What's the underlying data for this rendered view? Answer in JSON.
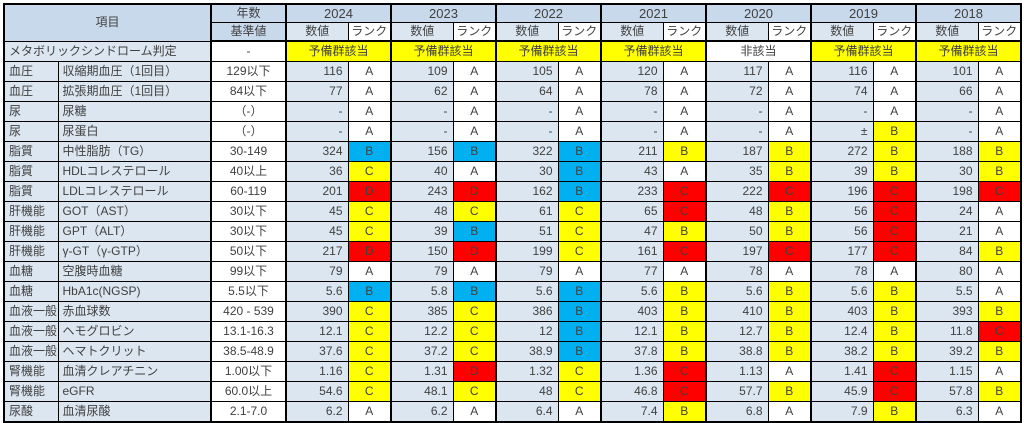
{
  "colors": {
    "rank_yellow": "#ffff00",
    "rank_blue": "#00b0f0",
    "rank_red": "#ff0000",
    "header_blue": "#c9d9ec",
    "cell_blue": "#dce6f1"
  },
  "header": {
    "item_label": "項目",
    "years_label": "年数",
    "standard_label": "基準値",
    "value_label": "数値",
    "rank_label": "ランク",
    "years": [
      "2024",
      "2023",
      "2022",
      "2021",
      "2020",
      "2019",
      "2018"
    ]
  },
  "metabolic": {
    "label": "メタボリックシンドローム判定",
    "standard": "-",
    "results": [
      {
        "text": "予備群該当",
        "bg": "yellow"
      },
      {
        "text": "予備群該当",
        "bg": "yellow"
      },
      {
        "text": "予備群該当",
        "bg": "yellow"
      },
      {
        "text": "予備群該当",
        "bg": "yellow"
      },
      {
        "text": "非該当",
        "bg": "white"
      },
      {
        "text": "予備群該当",
        "bg": "yellow"
      },
      {
        "text": "予備群該当",
        "bg": "yellow"
      }
    ]
  },
  "rows": [
    {
      "category": "血圧",
      "item": "収縮期血圧（1回目）",
      "standard": "129以下",
      "cells": [
        {
          "v": "116",
          "r": "A",
          "bg": "white"
        },
        {
          "v": "109",
          "r": "A",
          "bg": "white"
        },
        {
          "v": "105",
          "r": "A",
          "bg": "white"
        },
        {
          "v": "120",
          "r": "A",
          "bg": "white"
        },
        {
          "v": "117",
          "r": "A",
          "bg": "white"
        },
        {
          "v": "116",
          "r": "A",
          "bg": "white"
        },
        {
          "v": "101",
          "r": "A",
          "bg": "white"
        }
      ]
    },
    {
      "category": "血圧",
      "item": "拡張期血圧（1回目）",
      "standard": "84以下",
      "cells": [
        {
          "v": "77",
          "r": "A",
          "bg": "white"
        },
        {
          "v": "62",
          "r": "A",
          "bg": "white"
        },
        {
          "v": "64",
          "r": "A",
          "bg": "white"
        },
        {
          "v": "78",
          "r": "A",
          "bg": "white"
        },
        {
          "v": "72",
          "r": "A",
          "bg": "white"
        },
        {
          "v": "74",
          "r": "A",
          "bg": "white"
        },
        {
          "v": "66",
          "r": "A",
          "bg": "white"
        }
      ]
    },
    {
      "category": "尿",
      "item": "尿糖",
      "standard": "（-）",
      "cells": [
        {
          "v": "-",
          "r": "A",
          "bg": "white"
        },
        {
          "v": "-",
          "r": "A",
          "bg": "white"
        },
        {
          "v": "-",
          "r": "A",
          "bg": "white"
        },
        {
          "v": "-",
          "r": "A",
          "bg": "white"
        },
        {
          "v": "-",
          "r": "A",
          "bg": "white"
        },
        {
          "v": "-",
          "r": "A",
          "bg": "white"
        },
        {
          "v": "-",
          "r": "A",
          "bg": "white"
        }
      ]
    },
    {
      "category": "尿",
      "item": "尿蛋白",
      "standard": "（-）",
      "cells": [
        {
          "v": "-",
          "r": "A",
          "bg": "white"
        },
        {
          "v": "-",
          "r": "A",
          "bg": "white"
        },
        {
          "v": "-",
          "r": "A",
          "bg": "white"
        },
        {
          "v": "-",
          "r": "A",
          "bg": "white"
        },
        {
          "v": "-",
          "r": "A",
          "bg": "white"
        },
        {
          "v": "±",
          "r": "B",
          "bg": "yellow"
        },
        {
          "v": "-",
          "r": "A",
          "bg": "white"
        }
      ]
    },
    {
      "category": "脂質",
      "item": "中性脂肪（TG）",
      "standard": "30-149",
      "cells": [
        {
          "v": "324",
          "r": "B",
          "bg": "blue"
        },
        {
          "v": "156",
          "r": "B",
          "bg": "blue"
        },
        {
          "v": "322",
          "r": "B",
          "bg": "blue"
        },
        {
          "v": "211",
          "r": "B",
          "bg": "yellow"
        },
        {
          "v": "187",
          "r": "B",
          "bg": "yellow"
        },
        {
          "v": "272",
          "r": "B",
          "bg": "yellow"
        },
        {
          "v": "188",
          "r": "B",
          "bg": "yellow"
        }
      ]
    },
    {
      "category": "脂質",
      "item": "HDLコレステロール",
      "standard": "40以上",
      "cells": [
        {
          "v": "36",
          "r": "C",
          "bg": "yellow"
        },
        {
          "v": "40",
          "r": "A",
          "bg": "white"
        },
        {
          "v": "30",
          "r": "B",
          "bg": "blue"
        },
        {
          "v": "43",
          "r": "A",
          "bg": "white"
        },
        {
          "v": "35",
          "r": "B",
          "bg": "yellow"
        },
        {
          "v": "39",
          "r": "B",
          "bg": "yellow"
        },
        {
          "v": "30",
          "r": "B",
          "bg": "yellow"
        }
      ]
    },
    {
      "category": "脂質",
      "item": "LDLコレステロール",
      "standard": "60-119",
      "cells": [
        {
          "v": "201",
          "r": "D",
          "bg": "red"
        },
        {
          "v": "243",
          "r": "D",
          "bg": "red"
        },
        {
          "v": "162",
          "r": "B",
          "bg": "blue"
        },
        {
          "v": "233",
          "r": "C",
          "bg": "red"
        },
        {
          "v": "222",
          "r": "C",
          "bg": "red"
        },
        {
          "v": "196",
          "r": "C",
          "bg": "red"
        },
        {
          "v": "198",
          "r": "C",
          "bg": "red"
        }
      ]
    },
    {
      "category": "肝機能",
      "item": "GOT（AST）",
      "standard": "30以下",
      "cells": [
        {
          "v": "45",
          "r": "C",
          "bg": "yellow"
        },
        {
          "v": "48",
          "r": "C",
          "bg": "yellow"
        },
        {
          "v": "61",
          "r": "C",
          "bg": "yellow"
        },
        {
          "v": "65",
          "r": "C",
          "bg": "red"
        },
        {
          "v": "48",
          "r": "B",
          "bg": "yellow"
        },
        {
          "v": "56",
          "r": "C",
          "bg": "red"
        },
        {
          "v": "24",
          "r": "A",
          "bg": "white"
        }
      ]
    },
    {
      "category": "肝機能",
      "item": "GPT（ALT）",
      "standard": "30以下",
      "cells": [
        {
          "v": "45",
          "r": "C",
          "bg": "yellow"
        },
        {
          "v": "39",
          "r": "B",
          "bg": "blue"
        },
        {
          "v": "51",
          "r": "C",
          "bg": "yellow"
        },
        {
          "v": "47",
          "r": "B",
          "bg": "yellow"
        },
        {
          "v": "50",
          "r": "B",
          "bg": "yellow"
        },
        {
          "v": "56",
          "r": "C",
          "bg": "red"
        },
        {
          "v": "21",
          "r": "A",
          "bg": "white"
        }
      ]
    },
    {
      "category": "肝機能",
      "item": "γ-GT（γ-GTP）",
      "standard": "50以下",
      "cells": [
        {
          "v": "217",
          "r": "D",
          "bg": "red"
        },
        {
          "v": "150",
          "r": "D",
          "bg": "red"
        },
        {
          "v": "199",
          "r": "C",
          "bg": "yellow"
        },
        {
          "v": "161",
          "r": "C",
          "bg": "red"
        },
        {
          "v": "197",
          "r": "C",
          "bg": "red"
        },
        {
          "v": "177",
          "r": "C",
          "bg": "red"
        },
        {
          "v": "84",
          "r": "B",
          "bg": "yellow"
        }
      ]
    },
    {
      "category": "血糖",
      "item": "空腹時血糖",
      "standard": "99以下",
      "cells": [
        {
          "v": "79",
          "r": "A",
          "bg": "white"
        },
        {
          "v": "79",
          "r": "A",
          "bg": "white"
        },
        {
          "v": "79",
          "r": "A",
          "bg": "white"
        },
        {
          "v": "77",
          "r": "A",
          "bg": "white"
        },
        {
          "v": "78",
          "r": "A",
          "bg": "white"
        },
        {
          "v": "78",
          "r": "A",
          "bg": "white"
        },
        {
          "v": "80",
          "r": "A",
          "bg": "white"
        }
      ]
    },
    {
      "category": "血糖",
      "item": "HbA1c(NGSP)",
      "standard": "5.5以下",
      "cells": [
        {
          "v": "5.6",
          "r": "B",
          "bg": "blue"
        },
        {
          "v": "5.8",
          "r": "B",
          "bg": "blue"
        },
        {
          "v": "5.6",
          "r": "B",
          "bg": "blue"
        },
        {
          "v": "5.6",
          "r": "B",
          "bg": "yellow"
        },
        {
          "v": "5.6",
          "r": "B",
          "bg": "yellow"
        },
        {
          "v": "5.6",
          "r": "B",
          "bg": "yellow"
        },
        {
          "v": "5.5",
          "r": "A",
          "bg": "white"
        }
      ]
    },
    {
      "category": "血液一般",
      "item": "赤血球数",
      "standard": "420 - 539",
      "cells": [
        {
          "v": "390",
          "r": "C",
          "bg": "yellow"
        },
        {
          "v": "385",
          "r": "C",
          "bg": "yellow"
        },
        {
          "v": "386",
          "r": "B",
          "bg": "blue"
        },
        {
          "v": "403",
          "r": "B",
          "bg": "yellow"
        },
        {
          "v": "410",
          "r": "B",
          "bg": "yellow"
        },
        {
          "v": "403",
          "r": "B",
          "bg": "yellow"
        },
        {
          "v": "393",
          "r": "B",
          "bg": "yellow"
        }
      ]
    },
    {
      "category": "血液一般",
      "item": "ヘモグロビン",
      "standard": "13.1-16.3",
      "cells": [
        {
          "v": "12.1",
          "r": "C",
          "bg": "yellow"
        },
        {
          "v": "12.2",
          "r": "C",
          "bg": "yellow"
        },
        {
          "v": "12",
          "r": "B",
          "bg": "blue"
        },
        {
          "v": "12.1",
          "r": "B",
          "bg": "yellow"
        },
        {
          "v": "12.7",
          "r": "B",
          "bg": "yellow"
        },
        {
          "v": "12.4",
          "r": "B",
          "bg": "yellow"
        },
        {
          "v": "11.8",
          "r": "C",
          "bg": "red"
        }
      ]
    },
    {
      "category": "血液一般",
      "item": "ヘマトクリット",
      "standard": "38.5-48.9",
      "cells": [
        {
          "v": "37.6",
          "r": "C",
          "bg": "yellow"
        },
        {
          "v": "37.2",
          "r": "C",
          "bg": "yellow"
        },
        {
          "v": "38.9",
          "r": "B",
          "bg": "blue"
        },
        {
          "v": "37.8",
          "r": "B",
          "bg": "yellow"
        },
        {
          "v": "38.8",
          "r": "B",
          "bg": "yellow"
        },
        {
          "v": "38.2",
          "r": "B",
          "bg": "yellow"
        },
        {
          "v": "39.2",
          "r": "B",
          "bg": "yellow"
        }
      ]
    },
    {
      "category": "腎機能",
      "item": "血清クレアチニン",
      "standard": "1.00以下",
      "cells": [
        {
          "v": "1.16",
          "r": "C",
          "bg": "yellow"
        },
        {
          "v": "1.31",
          "r": "D",
          "bg": "red"
        },
        {
          "v": "1.32",
          "r": "C",
          "bg": "yellow"
        },
        {
          "v": "1.36",
          "r": "C",
          "bg": "red"
        },
        {
          "v": "1.13",
          "r": "A",
          "bg": "white"
        },
        {
          "v": "1.41",
          "r": "C",
          "bg": "red"
        },
        {
          "v": "1.15",
          "r": "A",
          "bg": "white"
        }
      ]
    },
    {
      "category": "腎機能",
      "item": "eGFR",
      "standard": "60.0以上",
      "cells": [
        {
          "v": "54.6",
          "r": "C",
          "bg": "yellow"
        },
        {
          "v": "48.1",
          "r": "C",
          "bg": "yellow"
        },
        {
          "v": "48",
          "r": "C",
          "bg": "yellow"
        },
        {
          "v": "46.8",
          "r": "C",
          "bg": "red"
        },
        {
          "v": "57.7",
          "r": "B",
          "bg": "yellow"
        },
        {
          "v": "45.9",
          "r": "C",
          "bg": "red"
        },
        {
          "v": "57.8",
          "r": "B",
          "bg": "yellow"
        }
      ]
    },
    {
      "category": "尿酸",
      "item": "血清尿酸",
      "standard": "2.1-7.0",
      "cells": [
        {
          "v": "6.2",
          "r": "A",
          "bg": "white"
        },
        {
          "v": "6.2",
          "r": "A",
          "bg": "white"
        },
        {
          "v": "6.4",
          "r": "A",
          "bg": "white"
        },
        {
          "v": "7.4",
          "r": "B",
          "bg": "yellow"
        },
        {
          "v": "6.8",
          "r": "A",
          "bg": "white"
        },
        {
          "v": "7.9",
          "r": "B",
          "bg": "yellow"
        },
        {
          "v": "6.3",
          "r": "A",
          "bg": "white"
        }
      ]
    }
  ]
}
